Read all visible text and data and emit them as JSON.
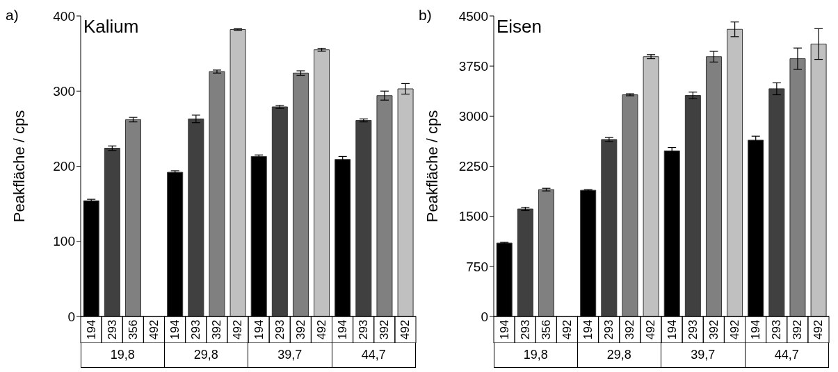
{
  "chart_data": [
    {
      "type": "bar",
      "title": "Kalium",
      "ylabel": "Peakfläche / cps",
      "annotations": [
        "a)",
        "19,8",
        "29,8",
        "39,7",
        "44,7"
      ],
      "categories": [
        "194",
        "293",
        "356",
        "492",
        "194",
        "293",
        "392",
        "492",
        "194",
        "293",
        "392",
        "492",
        "194",
        "293",
        "392",
        "492"
      ],
      "values": [
        154,
        224,
        262,
        null,
        192,
        263,
        326,
        382,
        213,
        279,
        324,
        355,
        209,
        261,
        294,
        303
      ],
      "errors": [
        2,
        3,
        3,
        null,
        2,
        5,
        2,
        1,
        2,
        2,
        3,
        2,
        4,
        2,
        6,
        7
      ],
      "colors": [
        "#000000",
        "#404040",
        "#808080",
        "#c0c0c0",
        "#000000",
        "#404040",
        "#808080",
        "#c0c0c0",
        "#000000",
        "#404040",
        "#808080",
        "#c0c0c0",
        "#000000",
        "#404040",
        "#808080",
        "#c0c0c0"
      ],
      "ylim": [
        0,
        400
      ],
      "yticks": [
        0,
        100,
        200,
        300,
        400
      ],
      "grid": false,
      "legend": false
    },
    {
      "type": "bar",
      "title": "Eisen",
      "ylabel": "Peakfläche / cps",
      "annotations": [
        "b)",
        "19,8",
        "29,8",
        "39,7",
        "44,7"
      ],
      "categories": [
        "194",
        "293",
        "356",
        "492",
        "194",
        "293",
        "392",
        "492",
        "194",
        "293",
        "392",
        "492",
        "194",
        "293",
        "392",
        "492"
      ],
      "values": [
        1100,
        1610,
        1900,
        null,
        1890,
        2650,
        3320,
        3890,
        2480,
        3310,
        3890,
        4300,
        2640,
        3410,
        3860,
        4080
      ],
      "errors": [
        10,
        25,
        20,
        null,
        10,
        30,
        15,
        30,
        50,
        50,
        80,
        110,
        60,
        90,
        160,
        230
      ],
      "colors": [
        "#000000",
        "#404040",
        "#808080",
        "#c0c0c0",
        "#000000",
        "#404040",
        "#808080",
        "#c0c0c0",
        "#000000",
        "#404040",
        "#808080",
        "#c0c0c0",
        "#000000",
        "#404040",
        "#808080",
        "#c0c0c0"
      ],
      "ylim": [
        0,
        4500
      ],
      "yticks": [
        0,
        750,
        1500,
        2250,
        3000,
        3750,
        4500
      ],
      "grid": false,
      "legend": false
    }
  ]
}
